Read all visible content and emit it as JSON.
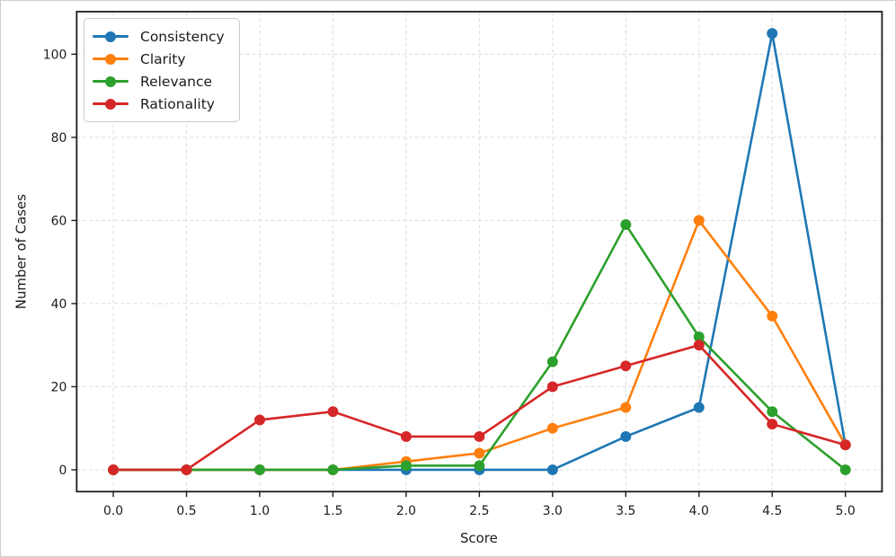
{
  "figure": {
    "background": "#ffffff",
    "border_color": "#cfcfcf"
  },
  "chart_data": {
    "type": "line",
    "title": "",
    "xlabel": "Score",
    "ylabel": "Number of Cases",
    "x": [
      0.0,
      0.5,
      1.0,
      1.5,
      2.0,
      2.5,
      3.0,
      3.5,
      4.0,
      4.5,
      5.0
    ],
    "series": [
      {
        "name": "Consistency",
        "color": "#1f77b4",
        "values": [
          0,
          0,
          0,
          0,
          0,
          0,
          0,
          8,
          15,
          105,
          6
        ]
      },
      {
        "name": "Clarity",
        "color": "#ff7f0e",
        "values": [
          0,
          0,
          0,
          0,
          2,
          4,
          10,
          15,
          60,
          37,
          6
        ]
      },
      {
        "name": "Relevance",
        "color": "#2ca02c",
        "values": [
          0,
          0,
          0,
          0,
          1,
          1,
          26,
          59,
          32,
          14,
          0
        ]
      },
      {
        "name": "Rationality",
        "color": "#d62728",
        "values": [
          0,
          0,
          12,
          14,
          8,
          8,
          20,
          25,
          30,
          11,
          6
        ]
      }
    ],
    "xlim": [
      -0.25,
      5.25
    ],
    "ylim": [
      -5.25,
      110.25
    ],
    "xticks": [
      0.0,
      0.5,
      1.0,
      1.5,
      2.0,
      2.5,
      3.0,
      3.5,
      4.0,
      4.5,
      5.0
    ],
    "xtick_labels": [
      "0.0",
      "0.5",
      "1.0",
      "1.5",
      "2.0",
      "2.5",
      "3.0",
      "3.5",
      "4.0",
      "4.5",
      "5.0"
    ],
    "yticks": [
      0,
      20,
      40,
      60,
      80,
      100
    ],
    "ytick_labels": [
      "0",
      "20",
      "40",
      "60",
      "80",
      "100"
    ],
    "grid": true,
    "grid_color": "#dcdcdc",
    "grid_dash": "4 3",
    "spine_color": "#1c1c1c",
    "legend_position": "upper-left",
    "line_width": 2.6,
    "marker": "circle",
    "marker_radius": 6
  }
}
